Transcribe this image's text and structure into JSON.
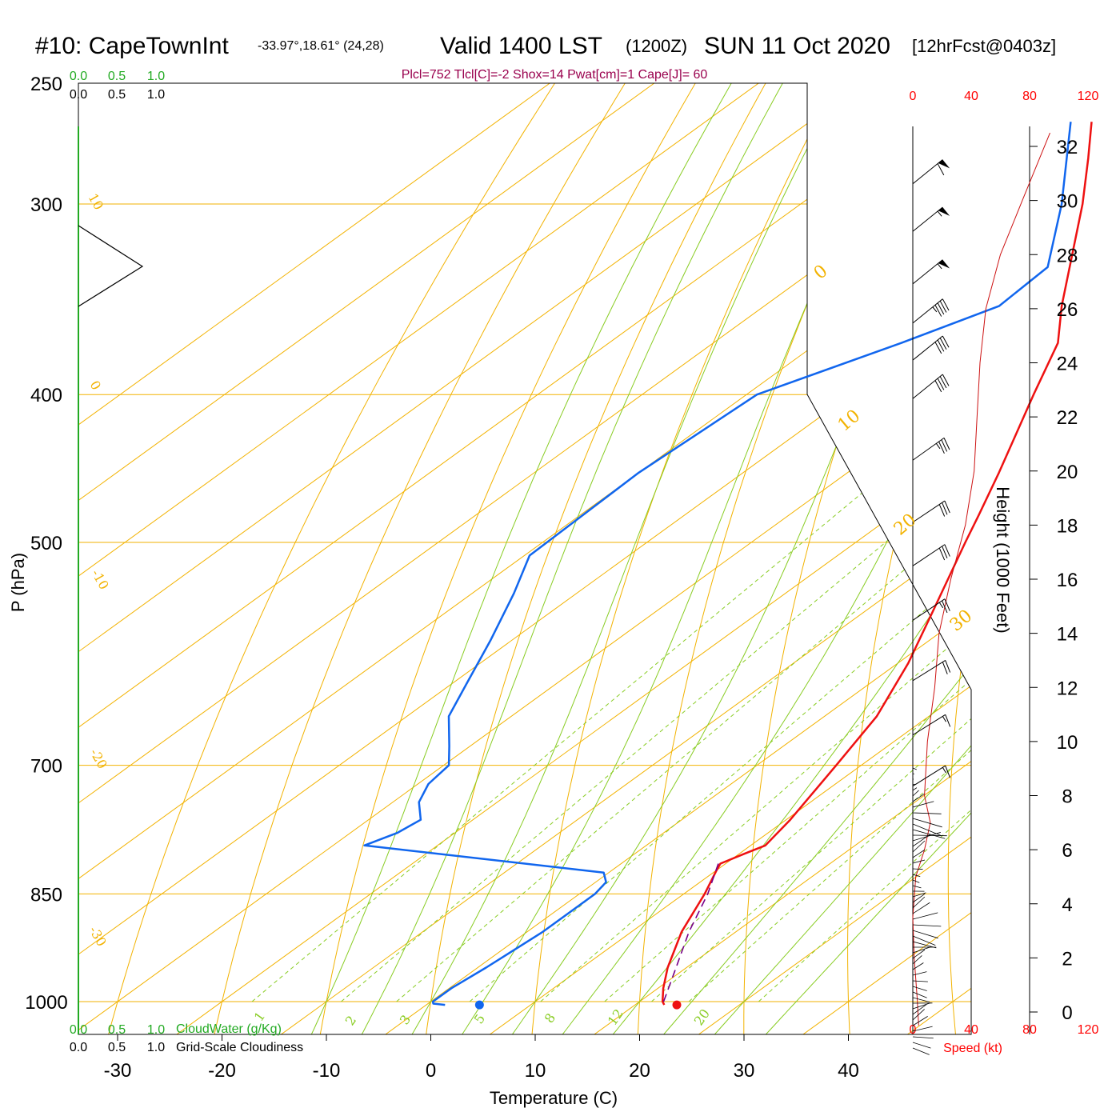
{
  "title": {
    "station": "#10: CapeTownInt",
    "coords": "-33.97°,18.61° (24,28)",
    "valid": "Valid 1400 LST",
    "utc": "(1200Z)",
    "date": "SUN 11 Oct 2020",
    "forecast": "[12hrFcst@0403z]"
  },
  "info_line": "Plcl=752 Tlcl[C]=-2 Shox=14 Pwat[cm]=1 Cape[J]= 60",
  "colors": {
    "temperature": "#ee1111",
    "dewpoint": "#1166ee",
    "parcel": "#770088",
    "isotherm": "#f2b200",
    "dry_adiabat": "#f2b200",
    "moist_adiabat": "#88cc22",
    "mixing_ratio": "#88cc22",
    "cloud_water": "#22aa22",
    "wind_speed": "#cc1111"
  },
  "chart_data": {
    "type": "skew-t log-p sounding",
    "xlabel": "Temperature (C)",
    "ylabel": "P (hPa)",
    "y2label": "Height (1000 Feet)",
    "pressure_ticks": [
      "250",
      "300",
      "400",
      "500",
      "700",
      "850",
      "1000"
    ],
    "temperature_ticks": [
      "-30",
      "-20",
      "-10",
      "0",
      "10",
      "20",
      "30",
      "40"
    ],
    "height_ticks": [
      "0",
      "2",
      "4",
      "6",
      "8",
      "10",
      "12",
      "14",
      "16",
      "18",
      "20",
      "22",
      "24",
      "26",
      "28",
      "30",
      "32"
    ],
    "speed_ticks": [
      "0",
      "40",
      "80",
      "120"
    ],
    "speed_label": "Speed (kt)",
    "cloud_scale_ticks": [
      "0.0",
      "0.5",
      "1.0"
    ],
    "cloud_water_label": "CloudWater (g/Kg)",
    "cloudiness_label": "Grid-Scale Cloudiness",
    "isotherm_labels": [
      "10",
      "0",
      "-10",
      "-20",
      "-30"
    ],
    "dry_adiabat_labels": [
      "0",
      "10",
      "20",
      "30"
    ],
    "mixing_ratio_labels": [
      "1",
      "2",
      "3",
      "5",
      "8",
      "12",
      "20"
    ],
    "temperature_profile": [
      {
        "p": 1005,
        "t": 22.8
      },
      {
        "p": 1000,
        "t": 22.2
      },
      {
        "p": 980,
        "t": 20.5
      },
      {
        "p": 950,
        "t": 18.2
      },
      {
        "p": 900,
        "t": 14.8
      },
      {
        "p": 850,
        "t": 12.0
      },
      {
        "p": 820,
        "t": 10.0
      },
      {
        "p": 812,
        "t": 9.5
      },
      {
        "p": 800,
        "t": 10.5
      },
      {
        "p": 790,
        "t": 11.4
      },
      {
        "p": 760,
        "t": 10.4
      },
      {
        "p": 700,
        "t": 7.6
      },
      {
        "p": 650,
        "t": 5.0
      },
      {
        "p": 600,
        "t": 1.0
      },
      {
        "p": 550,
        "t": -4.0
      },
      {
        "p": 500,
        "t": -9.5
      },
      {
        "p": 480,
        "t": -11.8
      },
      {
        "p": 450,
        "t": -15.5
      },
      {
        "p": 400,
        "t": -22.5
      },
      {
        "p": 370,
        "t": -27.0
      },
      {
        "p": 350,
        "t": -31.5
      },
      {
        "p": 300,
        "t": -43.0
      },
      {
        "p": 280,
        "t": -48.5
      },
      {
        "p": 265,
        "t": -53.0
      }
    ],
    "dewpoint_profile": [
      {
        "p": 1005,
        "t": 1.8
      },
      {
        "p": 1003,
        "t": 0.5
      },
      {
        "p": 1000,
        "t": 0.2
      },
      {
        "p": 980,
        "t": 0.2
      },
      {
        "p": 950,
        "t": 0.8
      },
      {
        "p": 900,
        "t": 1.5
      },
      {
        "p": 850,
        "t": 1.5
      },
      {
        "p": 835,
        "t": 1.0
      },
      {
        "p": 823,
        "t": -0.5
      },
      {
        "p": 790,
        "t": -27.0
      },
      {
        "p": 775,
        "t": -25.5
      },
      {
        "p": 760,
        "t": -25.0
      },
      {
        "p": 740,
        "t": -27.5
      },
      {
        "p": 720,
        "t": -29.0
      },
      {
        "p": 700,
        "t": -29.5
      },
      {
        "p": 680,
        "t": -32.0
      },
      {
        "p": 650,
        "t": -36.0
      },
      {
        "p": 620,
        "t": -38.5
      },
      {
        "p": 580,
        "t": -42.0
      },
      {
        "p": 540,
        "t": -46.0
      },
      {
        "p": 510,
        "t": -49.5
      },
      {
        "p": 450,
        "t": -50.0
      },
      {
        "p": 400,
        "t": -49.0
      },
      {
        "p": 370,
        "t": -42.0
      },
      {
        "p": 350,
        "t": -37.5
      },
      {
        "p": 330,
        "t": -38.0
      },
      {
        "p": 300,
        "t": -45.0
      },
      {
        "p": 265,
        "t": -55.0
      }
    ],
    "parcel_profile": [
      {
        "p": 1000,
        "t": 22.3
      },
      {
        "p": 950,
        "t": 19.0
      },
      {
        "p": 900,
        "t": 15.5
      },
      {
        "p": 850,
        "t": 12.3
      },
      {
        "p": 812,
        "t": 9.3
      }
    ],
    "surface_markers": [
      {
        "kind": "temperature",
        "p": 1005,
        "t": 24.0
      },
      {
        "kind": "dewpoint",
        "p": 1005,
        "t": 5.1
      }
    ],
    "freezing_ticks_deg": [
      60,
      0
    ],
    "speed_profile_kt": [
      {
        "h": -0.5,
        "s": 4
      },
      {
        "h": 0.5,
        "s": 3
      },
      {
        "h": 2,
        "s": 1
      },
      {
        "h": 3.5,
        "s": 0
      },
      {
        "h": 5,
        "s": 2
      },
      {
        "h": 6,
        "s": 8
      },
      {
        "h": 7,
        "s": 12
      },
      {
        "h": 8,
        "s": 8
      },
      {
        "h": 10,
        "s": 10
      },
      {
        "h": 12,
        "s": 15
      },
      {
        "h": 14,
        "s": 18
      },
      {
        "h": 16,
        "s": 26
      },
      {
        "h": 18,
        "s": 36
      },
      {
        "h": 20,
        "s": 42
      },
      {
        "h": 22,
        "s": 44
      },
      {
        "h": 24,
        "s": 46
      },
      {
        "h": 26,
        "s": 50
      },
      {
        "h": 28,
        "s": 60
      },
      {
        "h": 30,
        "s": 75
      },
      {
        "h": 32.5,
        "s": 94
      }
    ],
    "wind_barbs_upper": [
      {
        "p": 282,
        "dir": 240,
        "spd": 60
      },
      {
        "p": 303,
        "dir": 240,
        "spd": 55
      },
      {
        "p": 328,
        "dir": 240,
        "spd": 55
      },
      {
        "p": 348,
        "dir": 240,
        "spd": 45
      },
      {
        "p": 368,
        "dir": 240,
        "spd": 40
      },
      {
        "p": 390,
        "dir": 240,
        "spd": 40
      },
      {
        "p": 428,
        "dir": 250,
        "spd": 35
      },
      {
        "p": 470,
        "dir": 255,
        "spd": 30
      },
      {
        "p": 502,
        "dir": 255,
        "spd": 30
      },
      {
        "p": 545,
        "dir": 255,
        "spd": 25
      },
      {
        "p": 597,
        "dir": 260,
        "spd": 20
      },
      {
        "p": 648,
        "dir": 260,
        "spd": 15
      },
      {
        "p": 700,
        "dir": 260,
        "spd": 15
      }
    ]
  }
}
